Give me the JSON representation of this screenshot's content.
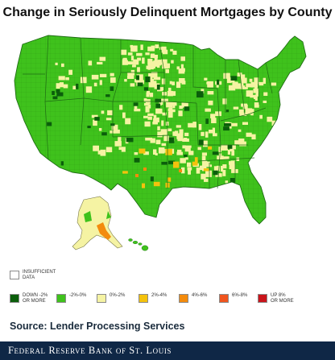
{
  "title": "Change in Seriously Delinquent Mortgages by County",
  "source": "Source: Lender Processing Services",
  "footer": "Federal Reserve Bank of St. Louis",
  "legend": {
    "insufficient": {
      "label_line1": "INSUFFICIENT",
      "label_line2": "DATA",
      "color": "#ffffff"
    },
    "items": [
      {
        "label_line1": "DOWN -2%",
        "label_line2": "OR MORE",
        "color": "#0b5e0b"
      },
      {
        "label_line1": "-2%-0%",
        "label_line2": "",
        "color": "#3fc21c"
      },
      {
        "label_line1": "0%-2%",
        "label_line2": "",
        "color": "#f5f3a3"
      },
      {
        "label_line1": "2%-4%",
        "label_line2": "",
        "color": "#f4c20d"
      },
      {
        "label_line1": "4%-6%",
        "label_line2": "",
        "color": "#f38b0d"
      },
      {
        "label_line1": "6%-8%",
        "label_line2": "",
        "color": "#f0551e"
      },
      {
        "label_line1": "UP 8%",
        "label_line2": "OR MORE",
        "color": "#c9141b"
      }
    ]
  },
  "colors": {
    "land_main": "#3fc21c",
    "state_borders": "#1e6a14",
    "footer_bg": "#0f2746"
  }
}
